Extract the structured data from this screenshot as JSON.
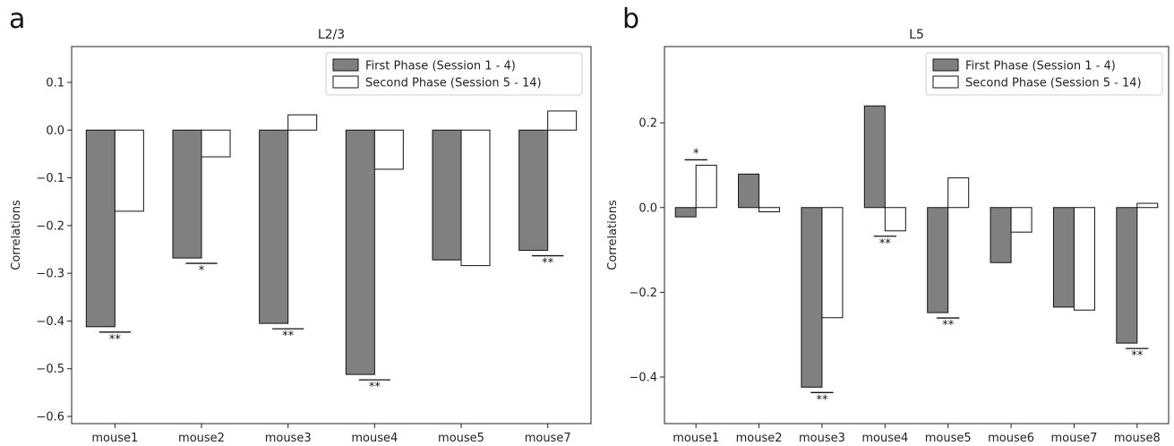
{
  "chart_data": [
    {
      "type": "bar",
      "panel_letter": "a",
      "title": "L2/3",
      "xlabel": "",
      "ylabel": "Correlations",
      "categories": [
        "mouse1",
        "mouse2",
        "mouse3",
        "mouse4",
        "mouse5",
        "mouse7"
      ],
      "series": [
        {
          "name": "First Phase (Session 1 - 4)",
          "color": "#808080",
          "values": [
            -0.412,
            -0.268,
            -0.405,
            -0.512,
            -0.272,
            -0.252
          ]
        },
        {
          "name": "Second Phase (Session 5 - 14)",
          "color": "#ffffff",
          "values": [
            -0.17,
            -0.056,
            0.032,
            -0.082,
            -0.284,
            0.04
          ]
        }
      ],
      "significance": [
        "**",
        "*",
        "**",
        "**",
        "",
        "**"
      ],
      "ylim": [
        -0.615,
        0.175
      ],
      "yticks": [
        "0.1",
        "0.0",
        "−0.1",
        "−0.2",
        "−0.3",
        "−0.4",
        "−0.5",
        "−0.6"
      ],
      "grid": false,
      "legend_position": "top-right"
    },
    {
      "type": "bar",
      "panel_letter": "b",
      "title": "L5",
      "xlabel": "",
      "ylabel": "Correlations",
      "categories": [
        "mouse1",
        "mouse2",
        "mouse3",
        "mouse4",
        "mouse5",
        "mouse6",
        "mouse7",
        "mouse8"
      ],
      "series": [
        {
          "name": "First Phase (Session 1 - 4)",
          "color": "#808080",
          "values": [
            -0.022,
            0.079,
            -0.424,
            0.24,
            -0.248,
            -0.13,
            -0.235,
            -0.32
          ]
        },
        {
          "name": "Second Phase (Session 5 - 14)",
          "color": "#ffffff",
          "values": [
            0.1,
            -0.01,
            -0.26,
            -0.055,
            0.07,
            -0.058,
            -0.242,
            0.01
          ]
        }
      ],
      "significance": [
        "*",
        "",
        "**",
        "**",
        "**",
        "",
        "",
        "**"
      ],
      "ylim": [
        -0.51,
        0.38
      ],
      "yticks": [
        "0.2",
        "0.0",
        "−0.2",
        "−0.4"
      ],
      "grid": false,
      "legend_position": "top-right"
    }
  ]
}
